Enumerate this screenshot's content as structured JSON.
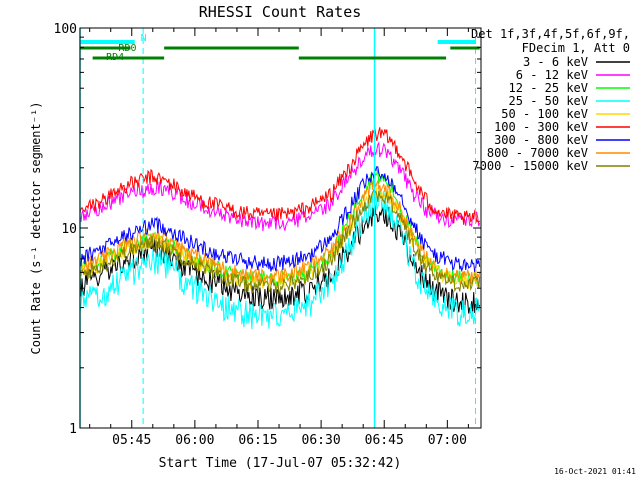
{
  "chart_data": {
    "type": "line",
    "title": "RHESSI Count Rates",
    "xlabel": "Start Time (17-Jul-07 05:32:42)",
    "ylabel": "Count Rate (s⁻¹ detector segment⁻¹)",
    "y_scale": "log",
    "ylim": [
      1,
      100
    ],
    "xlim": [
      "05:32:42",
      "07:08:00"
    ],
    "x_ticks": [
      "05:45",
      "06:00",
      "06:15",
      "06:30",
      "06:45",
      "07:00"
    ],
    "y_ticks": [
      "1",
      "10",
      "100"
    ],
    "grid": false,
    "legend_position": "right",
    "legend_header": [
      "Det 1f,3f,4f,5f,6f,9f,",
      "FDecim 1, Att 0"
    ],
    "x_minutes": [
      0,
      6,
      10,
      15,
      17,
      19,
      22,
      25,
      30,
      35,
      40,
      45,
      50,
      55,
      60,
      64,
      67,
      70,
      73,
      76,
      79,
      82,
      85,
      88,
      91,
      95
    ],
    "series": [
      {
        "name": "3 - 6 keV",
        "color": "#000000",
        "values": [
          5.2,
          6.0,
          6.8,
          7.6,
          8.0,
          7.8,
          7.2,
          6.4,
          5.6,
          5.0,
          4.6,
          4.5,
          4.6,
          5.0,
          6.0,
          8.0,
          10.0,
          12.0,
          11.5,
          9.5,
          7.0,
          5.5,
          4.8,
          4.4,
          4.2,
          4.2
        ]
      },
      {
        "name": "6 - 12 keV",
        "color": "#ff00ff",
        "values": [
          11.5,
          13.0,
          14.5,
          15.5,
          16.0,
          15.8,
          15.2,
          14.0,
          12.5,
          11.5,
          10.8,
          10.5,
          10.7,
          11.5,
          13.5,
          18.0,
          22.0,
          25.0,
          24.0,
          20.0,
          15.0,
          12.5,
          11.5,
          11.0,
          11.0,
          11.0
        ]
      },
      {
        "name": "12 - 25 keV",
        "color": "#00ff00",
        "values": [
          6.2,
          7.0,
          7.8,
          8.6,
          9.0,
          8.8,
          8.2,
          7.4,
          6.6,
          6.0,
          5.6,
          5.5,
          5.6,
          6.2,
          7.5,
          11.0,
          15.0,
          18.5,
          17.0,
          13.0,
          9.0,
          7.0,
          6.2,
          5.8,
          5.6,
          5.6
        ]
      },
      {
        "name": "25 - 50 keV",
        "color": "#00ffff",
        "values": [
          4.2,
          4.8,
          5.6,
          6.6,
          7.0,
          6.8,
          6.2,
          5.4,
          4.6,
          4.0,
          3.7,
          3.6,
          3.8,
          4.3,
          5.3,
          8.0,
          11.0,
          14.0,
          13.0,
          10.0,
          6.5,
          5.0,
          4.3,
          3.9,
          3.8,
          3.9
        ]
      },
      {
        "name": "50 - 100 keV",
        "color": "#ffd700",
        "values": [
          6.0,
          6.8,
          7.6,
          8.4,
          8.8,
          8.6,
          8.0,
          7.2,
          6.4,
          5.8,
          5.4,
          5.3,
          5.5,
          6.0,
          7.3,
          10.0,
          13.0,
          15.5,
          14.5,
          12.0,
          8.5,
          6.8,
          6.0,
          5.6,
          5.4,
          5.5
        ]
      },
      {
        "name": "100 - 300 keV",
        "color": "#ff0000",
        "values": [
          12.0,
          14.0,
          16.0,
          17.5,
          18.0,
          17.6,
          16.5,
          15.0,
          13.5,
          12.5,
          11.8,
          11.5,
          11.8,
          12.8,
          15.0,
          20.0,
          25.0,
          30.0,
          28.5,
          24.0,
          17.5,
          14.0,
          12.2,
          11.5,
          11.2,
          11.2
        ]
      },
      {
        "name": "300 - 800 keV",
        "color": "#0000ff",
        "values": [
          7.0,
          8.0,
          9.0,
          10.0,
          10.5,
          10.3,
          9.6,
          8.8,
          7.8,
          7.2,
          6.8,
          6.6,
          6.8,
          7.4,
          9.0,
          12.5,
          16.0,
          19.0,
          18.0,
          15.0,
          10.5,
          8.2,
          7.2,
          6.8,
          6.5,
          6.5
        ]
      },
      {
        "name": "800 - 7000 keV",
        "color": "#ff8c00",
        "values": [
          6.3,
          7.2,
          8.1,
          9.0,
          9.4,
          9.2,
          8.6,
          7.8,
          6.9,
          6.2,
          5.8,
          5.7,
          5.9,
          6.5,
          7.8,
          11.0,
          14.0,
          16.5,
          15.5,
          12.5,
          9.0,
          7.2,
          6.3,
          5.9,
          5.7,
          5.8
        ]
      },
      {
        "name": "7000 - 15000 keV",
        "color": "#808000",
        "values": [
          5.8,
          6.6,
          7.4,
          8.2,
          8.6,
          8.4,
          7.8,
          7.0,
          6.2,
          5.6,
          5.2,
          5.1,
          5.3,
          5.8,
          7.0,
          9.8,
          12.5,
          15.0,
          14.0,
          11.5,
          8.2,
          6.5,
          5.8,
          5.4,
          5.2,
          5.3
        ]
      }
    ],
    "annotations": {
      "cyan_bars": [
        {
          "start": 0,
          "end": 13,
          "label": "N"
        },
        {
          "start": 85,
          "end": 94,
          "label": ""
        }
      ],
      "green_bars_upper": [
        {
          "start": 0,
          "end": 12,
          "label": "RD0"
        },
        {
          "start": 20,
          "end": 52,
          "label": ""
        },
        {
          "start": 88,
          "end": 95,
          "label": ""
        }
      ],
      "green_bars_lower": [
        {
          "start": 3,
          "end": 20,
          "label": "RD4"
        },
        {
          "start": 52,
          "end": 87,
          "label": ""
        }
      ],
      "cyan_vlines_dashed": [
        15,
        94
      ],
      "cyan_vlines_solid": [
        0,
        70
      ]
    }
  },
  "footer_timestamp": "16-Oct-2021 01:41"
}
